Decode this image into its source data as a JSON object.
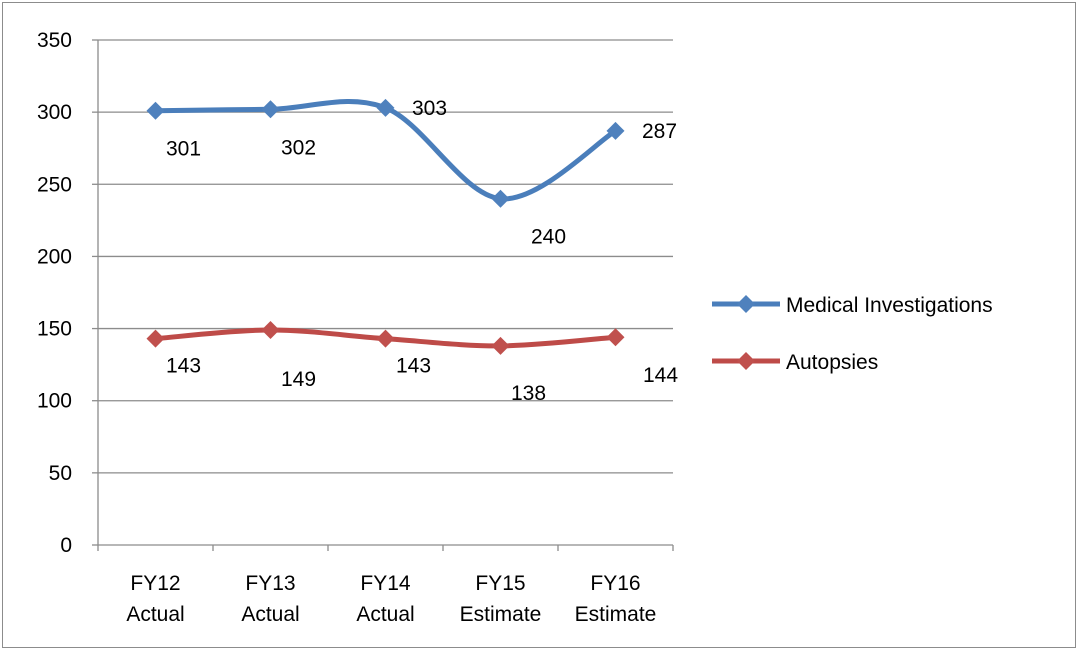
{
  "chart_data": {
    "type": "line",
    "title": "",
    "xlabel": "",
    "ylabel": "",
    "categories": [
      [
        "FY12",
        "Actual"
      ],
      [
        "FY13",
        "Actual"
      ],
      [
        "FY14",
        "Actual"
      ],
      [
        "FY15",
        "Estimate"
      ],
      [
        "FY16",
        "Estimate"
      ]
    ],
    "ylim": [
      0,
      350
    ],
    "yticks": [
      0,
      50,
      100,
      150,
      200,
      250,
      300,
      350
    ],
    "grid": true,
    "legend_position": "right",
    "series": [
      {
        "name": "Medical Investigations",
        "values": [
          301,
          302,
          303,
          240,
          287
        ],
        "labels": [
          "301",
          "302",
          "303",
          "240",
          "287"
        ],
        "color": "#4a7ebb",
        "marker_color": "#4f81bd",
        "smooth": true
      },
      {
        "name": "Autopsies",
        "values": [
          143,
          149,
          143,
          138,
          144
        ],
        "labels": [
          "143",
          "149",
          "143",
          "138",
          "144"
        ],
        "color": "#be4b48",
        "marker_color": "#c0504d",
        "smooth": true
      }
    ]
  }
}
